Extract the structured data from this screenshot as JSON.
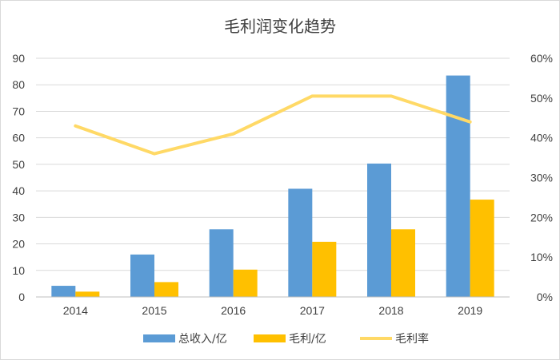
{
  "chart_data": {
    "type": "bar",
    "title": "毛利润变化趋势",
    "categories": [
      "2014",
      "2015",
      "2016",
      "2017",
      "2018",
      "2019"
    ],
    "series": [
      {
        "name": "总收入/亿",
        "type": "bar",
        "axis": "left",
        "color": "#5B9BD5",
        "values": [
          4.2,
          16.0,
          25.5,
          40.8,
          50.3,
          83.5
        ]
      },
      {
        "name": "毛利/亿",
        "type": "bar",
        "axis": "left",
        "color": "#FFC000",
        "values": [
          2.0,
          5.6,
          10.3,
          20.8,
          25.5,
          36.7
        ]
      },
      {
        "name": "毛利率",
        "type": "line",
        "axis": "right",
        "color": "#FFD966",
        "values": [
          0.43,
          0.36,
          0.41,
          0.505,
          0.505,
          0.44
        ]
      }
    ],
    "y_left": {
      "ticks": [
        "0",
        "10",
        "20",
        "30",
        "40",
        "50",
        "60",
        "70",
        "80",
        "90"
      ],
      "ylim": [
        0,
        90
      ]
    },
    "y_right": {
      "ticks": [
        "0%",
        "10%",
        "20%",
        "30%",
        "40%",
        "50%",
        "60%"
      ],
      "ylim": [
        0,
        0.6
      ]
    },
    "grid": true,
    "legend_position": "bottom"
  }
}
